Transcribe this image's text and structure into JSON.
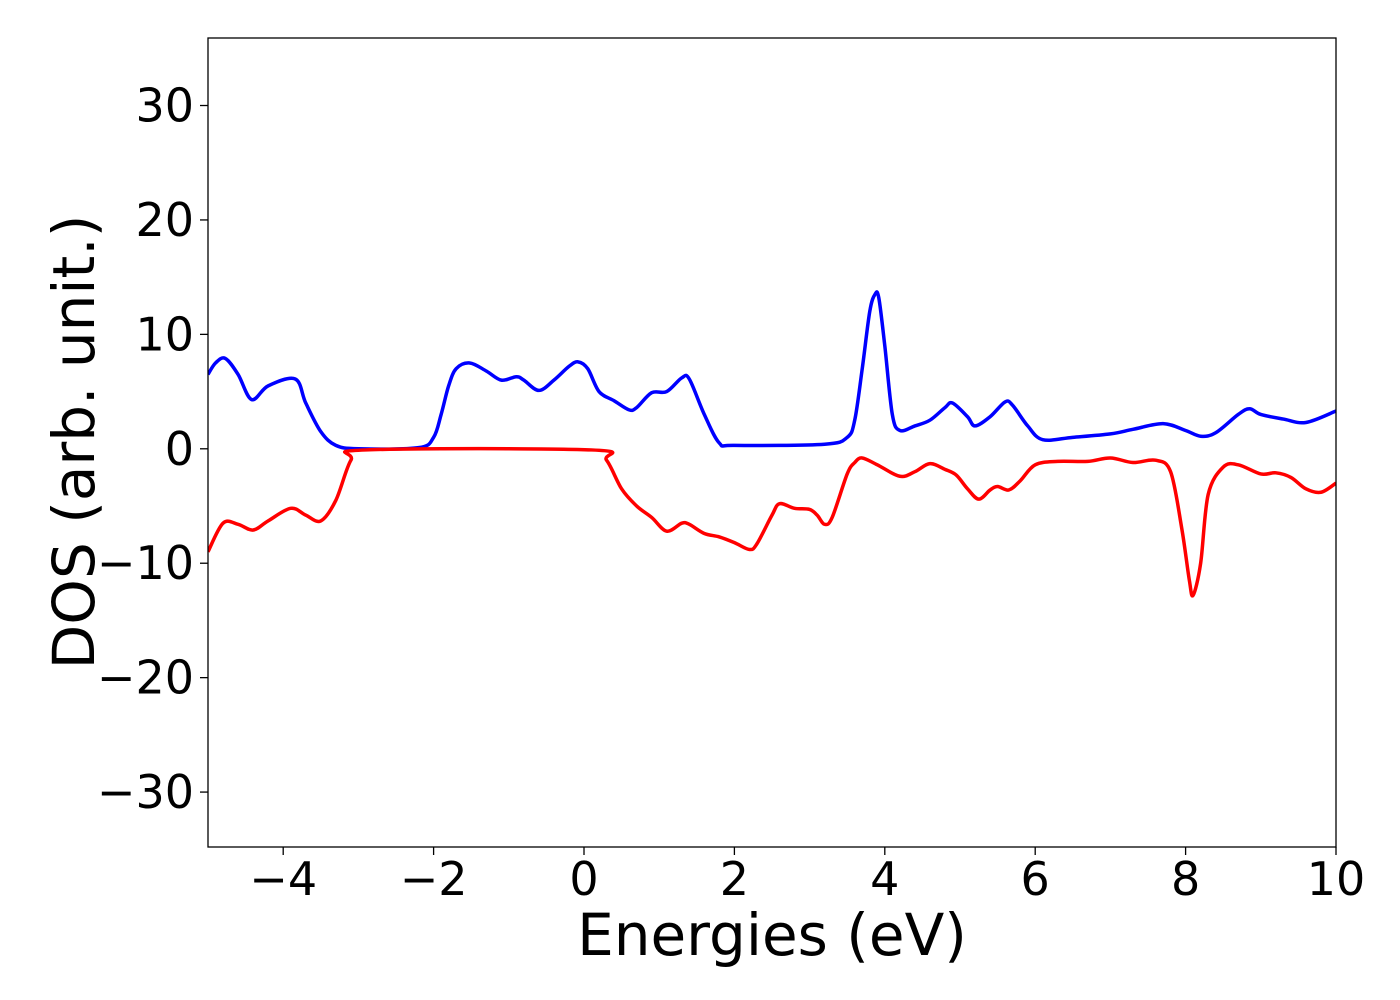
{
  "chart_data": {
    "type": "line",
    "xlabel": "Energies (eV)",
    "ylabel": "DOS (arb. unit.)",
    "xlim": [
      -5,
      10
    ],
    "ylim": [
      -34.8,
      35.9
    ],
    "xticks": [
      {
        "value": -4,
        "label": "−4"
      },
      {
        "value": -2,
        "label": "−2"
      },
      0,
      2,
      4,
      6,
      8,
      10
    ],
    "yticks": [
      {
        "value": -30,
        "label": "−30"
      },
      {
        "value": -20,
        "label": "−20"
      },
      {
        "value": -10,
        "label": "−10"
      },
      0,
      10,
      20,
      30
    ],
    "grid": false,
    "series": [
      {
        "color": "#0000ff",
        "x": [
          -5,
          -4.9,
          -4.77,
          -4.6,
          -4.42,
          -4.2,
          -3.84,
          -3.7,
          -3.5,
          -3.3,
          -3.0,
          -2.2,
          -2.0,
          -1.9,
          -1.8,
          -1.7,
          -1.52,
          -1.3,
          -1.1,
          -0.9,
          -0.8,
          -0.6,
          -0.4,
          -0.2,
          -0.08,
          0.05,
          0.2,
          0.4,
          0.6,
          0.7,
          0.9,
          1.1,
          1.3,
          1.4,
          1.6,
          1.8,
          2,
          3.2,
          3.5,
          3.6,
          3.7,
          3.8,
          3.87,
          3.92,
          4.0,
          4.1,
          4.2,
          4.4,
          4.6,
          4.8,
          4.9,
          5.1,
          5.2,
          5.4,
          5.6,
          5.7,
          5.9,
          6.1,
          6.5,
          7,
          7.3,
          7.7,
          8,
          8.2,
          8.4,
          8.7,
          8.85,
          9,
          9.3,
          9.6,
          10
        ],
        "values": [
          6.5,
          7.5,
          7.9,
          6.5,
          4.3,
          5.5,
          6.1,
          4,
          1.5,
          0.3,
          0,
          0.1,
          1,
          3,
          5.5,
          7,
          7.5,
          6.8,
          6.0,
          6.3,
          6.0,
          5.1,
          6,
          7.2,
          7.6,
          7.0,
          5,
          4.2,
          3.4,
          3.6,
          4.9,
          5,
          6.2,
          6.1,
          3,
          0.5,
          0.3,
          0.4,
          1,
          2.5,
          7,
          12,
          13.5,
          13.2,
          9,
          3,
          1.6,
          2,
          2.5,
          3.6,
          4,
          2.8,
          2,
          2.8,
          4.1,
          3.8,
          2,
          0.8,
          1,
          1.3,
          1.7,
          2.2,
          1.6,
          1.1,
          1.4,
          3,
          3.5,
          3,
          2.6,
          2.3,
          3.3
        ]
      },
      {
        "color": "#ff0000",
        "x": [
          -5,
          -4.8,
          -4.6,
          -4.4,
          -4.2,
          -3.9,
          -3.7,
          -3.5,
          -3.3,
          -3.1,
          -2.9,
          0.1,
          0.3,
          0.5,
          0.7,
          0.9,
          1.1,
          1.3,
          1.4,
          1.6,
          1.8,
          2.0,
          2.2,
          2.3,
          2.5,
          2.6,
          2.8,
          3.0,
          3.1,
          3.2,
          3.3,
          3.5,
          3.6,
          3.7,
          3.9,
          4.2,
          4.4,
          4.6,
          4.8,
          4.95,
          5.1,
          5.25,
          5.4,
          5.5,
          5.65,
          5.8,
          6.0,
          6.3,
          6.7,
          7.0,
          7.3,
          7.6,
          7.8,
          7.95,
          8.05,
          8.1,
          8.2,
          8.3,
          8.5,
          8.7,
          9.0,
          9.2,
          9.4,
          9.6,
          9.8,
          10
        ],
        "values": [
          -9,
          -6.5,
          -6.6,
          -7.1,
          -6.3,
          -5.2,
          -5.8,
          -6.3,
          -4.5,
          -1,
          -0.1,
          -0.1,
          -1.0,
          -3.5,
          -5,
          -6,
          -7.2,
          -6.5,
          -6.6,
          -7.4,
          -7.7,
          -8.2,
          -8.8,
          -8.3,
          -5.8,
          -4.8,
          -5.2,
          -5.3,
          -5.8,
          -6.6,
          -6.0,
          -2.2,
          -1.2,
          -0.8,
          -1.4,
          -2.4,
          -2,
          -1.3,
          -1.8,
          -2.3,
          -3.5,
          -4.4,
          -3.6,
          -3.3,
          -3.6,
          -2.8,
          -1.4,
          -1.1,
          -1.1,
          -0.8,
          -1.2,
          -1.0,
          -2,
          -7,
          -11.5,
          -12.8,
          -10,
          -4,
          -1.6,
          -1.4,
          -2.2,
          -2.1,
          -2.5,
          -3.5,
          -3.8,
          -3
        ]
      }
    ]
  }
}
